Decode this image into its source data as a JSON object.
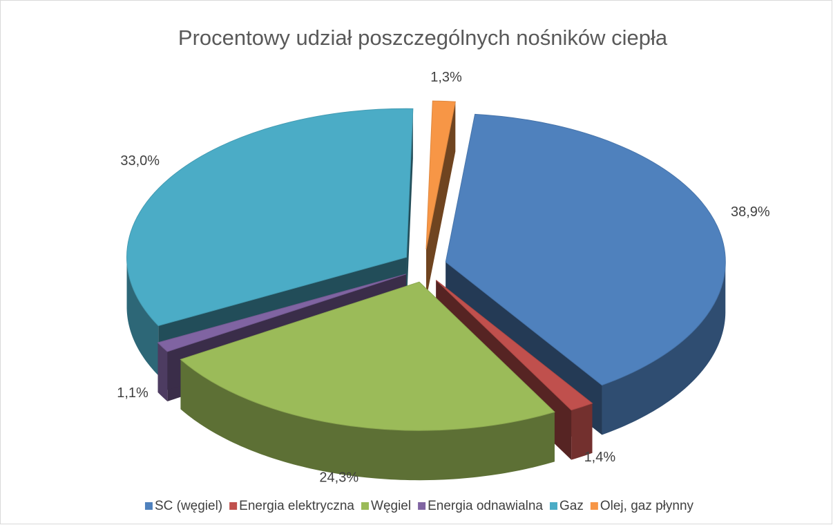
{
  "chart_data": {
    "type": "pie3d",
    "title": "Procentowy udział poszczególnych nośników ciepła",
    "categories": [
      "SC (węgiel)",
      "Energia elektryczna",
      "Węgiel",
      "Energia odnawialna",
      "Gaz",
      "Olej, gaz płynny"
    ],
    "values": [
      38.9,
      1.4,
      24.3,
      1.1,
      33.0,
      1.3
    ],
    "value_labels": [
      "38,9%",
      "1,4%",
      "24,3%",
      "1,1%",
      "33,0%",
      "1,3%"
    ],
    "colors": [
      "#4f81bd",
      "#c0504d",
      "#9bbb59",
      "#8064a2",
      "#4bacc6",
      "#f79646"
    ],
    "legend": "bottom"
  }
}
